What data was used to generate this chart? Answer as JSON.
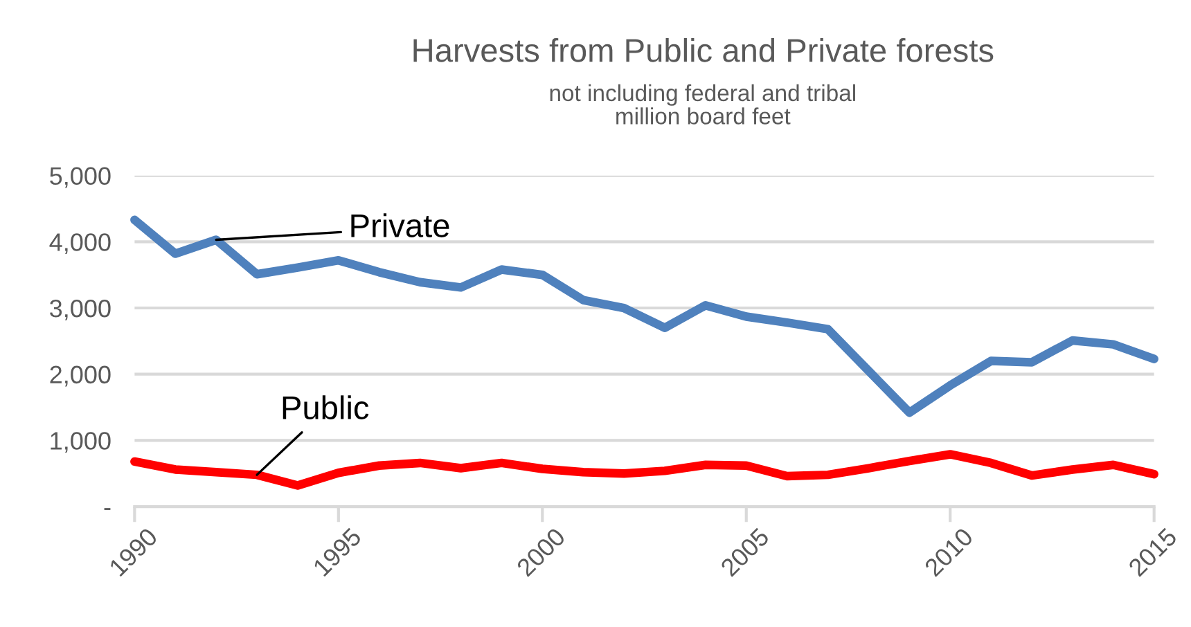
{
  "chart_data": {
    "type": "line",
    "title": "Harvests from Public and Private forests",
    "subtitle": "not including federal and tribal\nmillion board feet",
    "x": [
      1990,
      1991,
      1992,
      1993,
      1994,
      1995,
      1996,
      1997,
      1998,
      1999,
      2000,
      2001,
      2002,
      2003,
      2004,
      2005,
      2006,
      2007,
      2008,
      2009,
      2010,
      2011,
      2012,
      2013,
      2014,
      2015
    ],
    "series": [
      {
        "name": "Private",
        "color": "#4f81bd",
        "values": [
          4330,
          3820,
          4030,
          3510,
          3610,
          3720,
          3540,
          3390,
          3310,
          3580,
          3500,
          3120,
          3000,
          2700,
          3040,
          2870,
          2780,
          2680,
          2050,
          1420,
          1830,
          2200,
          2180,
          2510,
          2450,
          2230
        ]
      },
      {
        "name": "Public",
        "color": "#ff0000",
        "values": [
          680,
          560,
          520,
          480,
          320,
          510,
          620,
          660,
          580,
          660,
          570,
          520,
          500,
          540,
          630,
          620,
          460,
          480,
          580,
          690,
          790,
          660,
          470,
          560,
          630,
          490
        ]
      }
    ],
    "xlim": [
      1990,
      2015
    ],
    "xticks": [
      1990,
      1995,
      2000,
      2005,
      2010,
      2015
    ],
    "ylim": [
      0,
      5000
    ],
    "yticks": [
      {
        "value": 0,
        "label": "-"
      },
      {
        "value": 1000,
        "label": "1,000"
      },
      {
        "value": 2000,
        "label": "2,000"
      },
      {
        "value": 3000,
        "label": "3,000"
      },
      {
        "value": 4000,
        "label": "4,000"
      },
      {
        "value": 5000,
        "label": "5,000"
      }
    ],
    "grid": "y",
    "legend": false,
    "line_style": "solid"
  }
}
